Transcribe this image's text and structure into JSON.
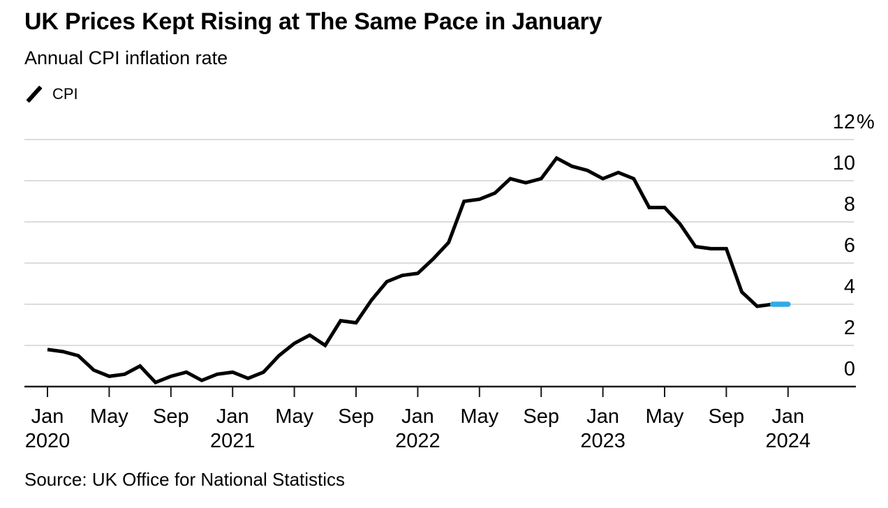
{
  "header": {
    "title": "UK Prices Kept Rising at The Same Pace in January",
    "subtitle": "Annual CPI inflation rate"
  },
  "legend": {
    "label": "CPI",
    "marker_color": "#000000"
  },
  "chart_data": {
    "type": "line",
    "title": "UK Prices Kept Rising at The Same Pace in January",
    "subtitle": "Annual CPI inflation rate",
    "unit": "%",
    "grid": "horizontal",
    "y_axis_side": "right",
    "ylim": [
      0,
      12
    ],
    "x": [
      "Jan 2020",
      "Feb 2020",
      "Mar 2020",
      "Apr 2020",
      "May 2020",
      "Jun 2020",
      "Jul 2020",
      "Aug 2020",
      "Sep 2020",
      "Oct 2020",
      "Nov 2020",
      "Dec 2020",
      "Jan 2021",
      "Feb 2021",
      "Mar 2021",
      "Apr 2021",
      "May 2021",
      "Jun 2021",
      "Jul 2021",
      "Aug 2021",
      "Sep 2021",
      "Oct 2021",
      "Nov 2021",
      "Dec 2021",
      "Jan 2022",
      "Feb 2022",
      "Mar 2022",
      "Apr 2022",
      "May 2022",
      "Jun 2022",
      "Jul 2022",
      "Aug 2022",
      "Sep 2022",
      "Oct 2022",
      "Nov 2022",
      "Dec 2022",
      "Jan 2023",
      "Feb 2023",
      "Mar 2023",
      "Apr 2023",
      "May 2023",
      "Jun 2023",
      "Jul 2023",
      "Aug 2023",
      "Sep 2023",
      "Oct 2023",
      "Nov 2023",
      "Dec 2023",
      "Jan 2024"
    ],
    "series": [
      {
        "name": "CPI",
        "color": "#000000",
        "values": [
          1.8,
          1.7,
          1.5,
          0.8,
          0.5,
          0.6,
          1.0,
          0.2,
          0.5,
          0.7,
          0.3,
          0.6,
          0.7,
          0.4,
          0.7,
          1.5,
          2.1,
          2.5,
          2.0,
          3.2,
          3.1,
          4.2,
          5.1,
          5.4,
          5.5,
          6.2,
          7.0,
          9.0,
          9.1,
          9.4,
          10.1,
          9.9,
          10.1,
          11.1,
          10.7,
          10.5,
          10.1,
          10.4,
          10.1,
          8.7,
          8.7,
          7.9,
          6.8,
          6.7,
          6.7,
          4.6,
          3.9,
          4.0,
          4.0
        ]
      }
    ],
    "highlight": {
      "description": "latest month segment drawn in blue",
      "from_index": 47,
      "to_index": 48,
      "color": "#2FABE6"
    },
    "yticks": [
      {
        "value": 12,
        "label": "12",
        "suffix": "%"
      },
      {
        "value": 10,
        "label": "10"
      },
      {
        "value": 8,
        "label": "8"
      },
      {
        "value": 6,
        "label": "6"
      },
      {
        "value": 4,
        "label": "4"
      },
      {
        "value": 2,
        "label": "2"
      },
      {
        "value": 0,
        "label": "0"
      }
    ],
    "xticks": [
      {
        "index": 0,
        "month": "Jan",
        "year": "2020"
      },
      {
        "index": 4,
        "month": "May"
      },
      {
        "index": 8,
        "month": "Sep"
      },
      {
        "index": 12,
        "month": "Jan",
        "year": "2021"
      },
      {
        "index": 16,
        "month": "May"
      },
      {
        "index": 20,
        "month": "Sep"
      },
      {
        "index": 24,
        "month": "Jan",
        "year": "2022"
      },
      {
        "index": 28,
        "month": "May"
      },
      {
        "index": 32,
        "month": "Sep"
      },
      {
        "index": 36,
        "month": "Jan",
        "year": "2023"
      },
      {
        "index": 40,
        "month": "May"
      },
      {
        "index": 44,
        "month": "Sep"
      },
      {
        "index": 48,
        "month": "Jan",
        "year": "2024"
      }
    ],
    "colors": {
      "line": "#000000",
      "highlight": "#2FABE6",
      "gridline": "#dcdcdc",
      "axis": "#1a1a1a"
    }
  },
  "source": "Source: UK Office for National Statistics"
}
